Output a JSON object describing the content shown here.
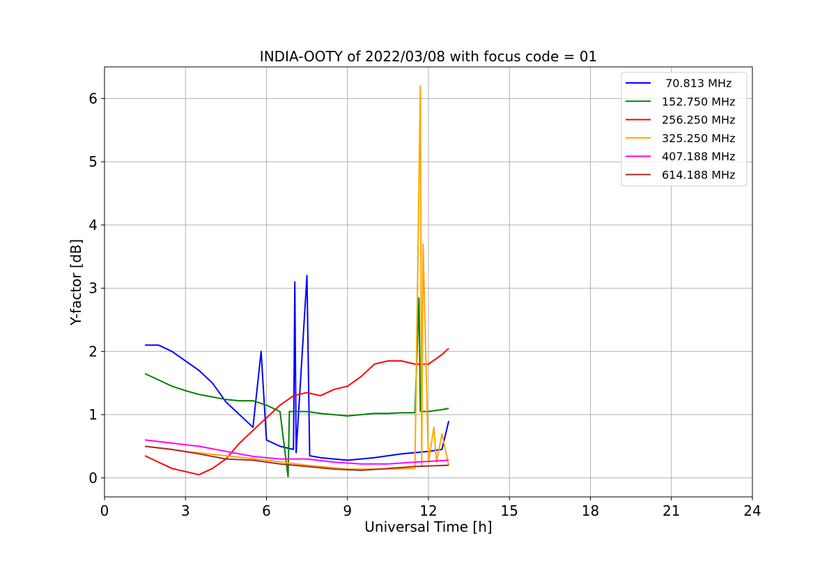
{
  "chart_data": {
    "type": "line",
    "title": "INDIA-OOTY of 2022/03/08 with focus code = 01",
    "xlabel": "Universal Time [h]",
    "ylabel": "Y-factor [dB]",
    "xlim": [
      0,
      24
    ],
    "ylim": [
      -0.3,
      6.5
    ],
    "xticks": [
      0,
      3,
      6,
      9,
      12,
      15,
      18,
      21,
      24
    ],
    "yticks": [
      0,
      1,
      2,
      3,
      4,
      5,
      6
    ],
    "grid": true,
    "legend_position": "top-right",
    "series": [
      {
        "name": " 70.813 MHz",
        "color": "#0000ff",
        "x": [
          1.5,
          2.0,
          2.5,
          3.0,
          3.5,
          4.0,
          4.5,
          5.0,
          5.5,
          5.8,
          6.0,
          6.5,
          7.0,
          7.05,
          7.1,
          7.5,
          7.6,
          8.0,
          8.5,
          9.0,
          9.5,
          10.0,
          10.5,
          11.0,
          11.5,
          12.0,
          12.5,
          12.75
        ],
        "y": [
          2.1,
          2.1,
          2.0,
          1.85,
          1.7,
          1.5,
          1.2,
          1.0,
          0.8,
          2.0,
          0.6,
          0.5,
          0.45,
          3.1,
          0.4,
          3.2,
          0.35,
          0.32,
          0.3,
          0.28,
          0.3,
          0.32,
          0.35,
          0.38,
          0.4,
          0.42,
          0.45,
          0.9
        ]
      },
      {
        "name": "152.750 MHz",
        "color": "#008000",
        "x": [
          1.5,
          2.0,
          2.5,
          3.0,
          3.5,
          4.0,
          4.5,
          5.0,
          5.5,
          6.0,
          6.5,
          6.8,
          6.85,
          7.0,
          7.5,
          8.0,
          8.5,
          9.0,
          9.5,
          10.0,
          10.5,
          11.0,
          11.5,
          11.65,
          11.7,
          12.0,
          12.5,
          12.75
        ],
        "y": [
          1.65,
          1.55,
          1.45,
          1.38,
          1.32,
          1.28,
          1.24,
          1.22,
          1.22,
          1.15,
          1.05,
          0.02,
          1.05,
          1.05,
          1.05,
          1.02,
          1.0,
          0.98,
          1.0,
          1.02,
          1.02,
          1.03,
          1.03,
          2.85,
          1.05,
          1.05,
          1.08,
          1.1
        ]
      },
      {
        "name": "256.250 MHz",
        "color": "#ff0000",
        "x": [
          1.5,
          2.0,
          2.5,
          3.0,
          3.5,
          4.0,
          4.5,
          5.0,
          5.5,
          6.0,
          6.5,
          7.0,
          7.5,
          8.0,
          8.5,
          9.0,
          9.5,
          10.0,
          10.5,
          11.0,
          11.5,
          12.0,
          12.5,
          12.75
        ],
        "y": [
          0.35,
          0.25,
          0.15,
          0.1,
          0.05,
          0.15,
          0.3,
          0.55,
          0.75,
          0.95,
          1.15,
          1.3,
          1.35,
          1.3,
          1.4,
          1.45,
          1.6,
          1.8,
          1.85,
          1.85,
          1.8,
          1.8,
          1.95,
          2.05
        ]
      },
      {
        "name": "325.250 MHz",
        "color": "#ffa500",
        "x": [
          1.5,
          3.0,
          4.5,
          6.0,
          7.5,
          9.0,
          10.5,
          11.5,
          11.7,
          11.75,
          11.8,
          12.0,
          12.2,
          12.3,
          12.5,
          12.75
        ],
        "y": [
          0.5,
          0.42,
          0.35,
          0.28,
          0.2,
          0.14,
          0.14,
          0.15,
          6.2,
          0.2,
          3.7,
          0.25,
          0.8,
          0.25,
          0.7,
          0.2
        ]
      },
      {
        "name": "407.188 MHz",
        "color": "#ff00ff",
        "x": [
          1.5,
          2.5,
          3.5,
          4.5,
          5.5,
          6.5,
          7.5,
          8.5,
          9.5,
          10.5,
          11.5,
          12.75
        ],
        "y": [
          0.6,
          0.55,
          0.5,
          0.42,
          0.34,
          0.3,
          0.3,
          0.25,
          0.22,
          0.22,
          0.25,
          0.28
        ]
      },
      {
        "name": "614.188 MHz",
        "color": "#a52a2a",
        "x": [
          1.5,
          2.5,
          3.5,
          4.5,
          5.5,
          6.5,
          7.5,
          8.5,
          9.5,
          10.5,
          11.5,
          12.75
        ],
        "y": [
          0.5,
          0.45,
          0.38,
          0.3,
          0.28,
          0.22,
          0.18,
          0.14,
          0.12,
          0.15,
          0.18,
          0.2
        ]
      }
    ]
  }
}
